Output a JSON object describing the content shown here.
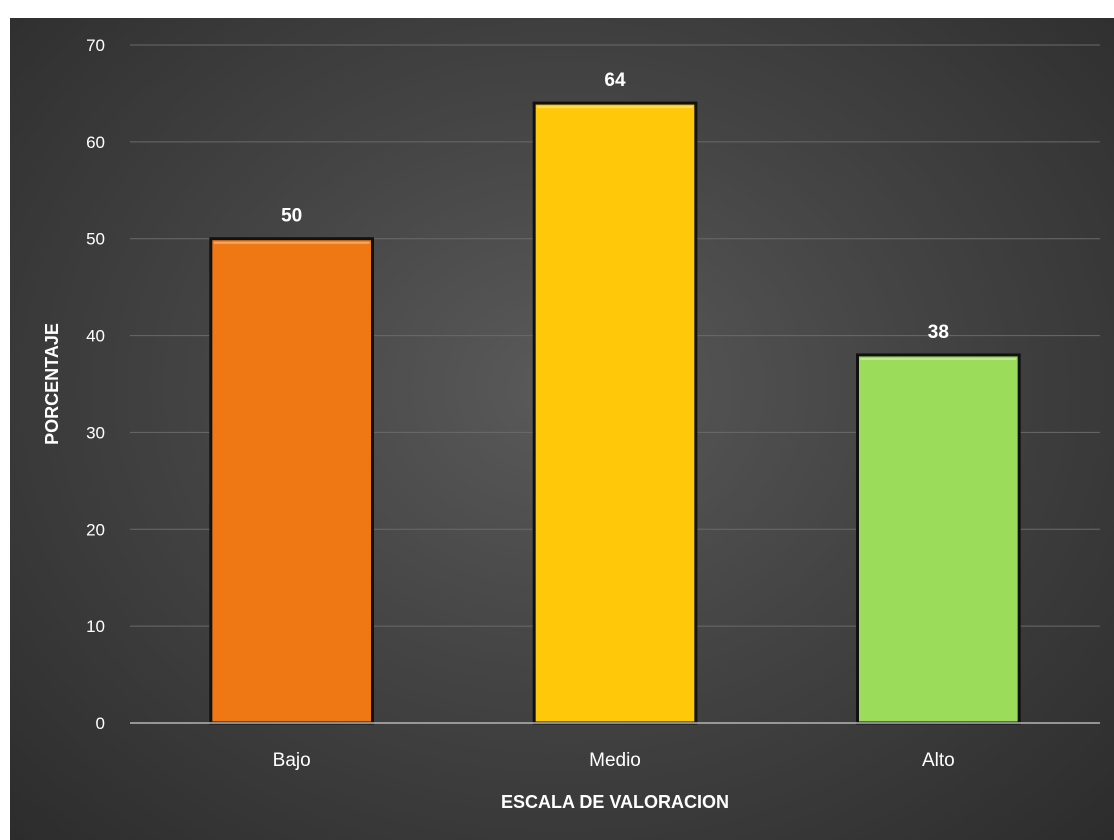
{
  "chart_data": {
    "type": "bar",
    "categories": [
      "Bajo",
      "Medio",
      "Alto"
    ],
    "values": [
      50,
      64,
      38
    ],
    "data_labels": [
      "50",
      "64",
      "38"
    ],
    "colors": [
      "#f07814",
      "#ffc90a",
      "#9bdc5a"
    ],
    "xlabel": "ESCALA DE VALORACION",
    "ylabel": "PORCENTAJE",
    "ylim": [
      0,
      70
    ],
    "yticks": [
      "0",
      "10",
      "20",
      "30",
      "40",
      "50",
      "60",
      "70"
    ],
    "grid": true,
    "legend": "none",
    "background": "#444444",
    "text_color": "#ffffff"
  }
}
